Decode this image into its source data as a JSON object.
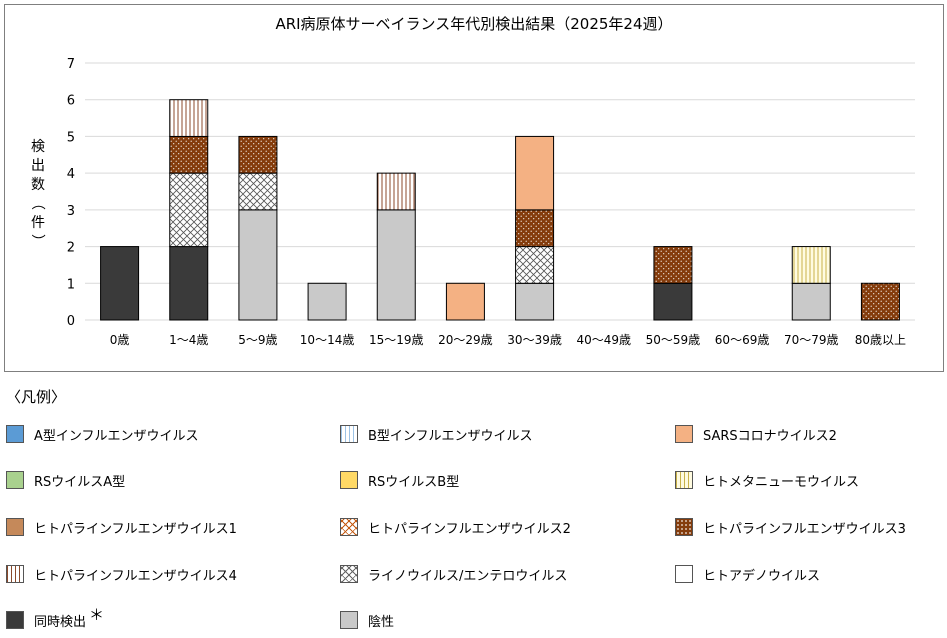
{
  "chart_data": {
    "type": "bar",
    "stacked": true,
    "title": "ARI病原体サーベイランス年代別検出結果（2025年24週）",
    "ylabel_chars": [
      "検",
      "出",
      "数",
      "（",
      "件",
      "）"
    ],
    "ylim": [
      0,
      7
    ],
    "yticks": [
      0,
      1,
      2,
      3,
      4,
      5,
      6,
      7
    ],
    "grid": true,
    "categories": [
      "0歳",
      "1～4歳",
      "5～9歳",
      "10～14歳",
      "15～19歳",
      "20～29歳",
      "30～39歳",
      "40～49歳",
      "50～59歳",
      "60～69歳",
      "70～79歳",
      "80歳以上"
    ],
    "series": [
      {
        "name": "同時検出",
        "pattern": "solid-dark",
        "values": [
          2,
          2,
          0,
          0,
          0,
          0,
          0,
          0,
          1,
          0,
          0,
          0
        ]
      },
      {
        "name": "陰性",
        "pattern": "solid-gray",
        "values": [
          0,
          0,
          3,
          1,
          3,
          0,
          1,
          0,
          0,
          0,
          1,
          0
        ]
      },
      {
        "name": "ライノウイルス/エンテロウイルス",
        "pattern": "cross-hatch",
        "values": [
          0,
          2,
          1,
          0,
          0,
          0,
          1,
          0,
          0,
          0,
          0,
          0
        ]
      },
      {
        "name": "ヒトパラインフルエンザウイルス3",
        "pattern": "brown-dots",
        "values": [
          0,
          1,
          1,
          0,
          0,
          0,
          1,
          0,
          1,
          0,
          0,
          1
        ]
      },
      {
        "name": "ヒトパラインフルエンザウイルス4",
        "pattern": "vertical-brown",
        "values": [
          0,
          1,
          0,
          0,
          1,
          0,
          0,
          0,
          0,
          0,
          0,
          0
        ]
      },
      {
        "name": "SARSコロナウイルス2",
        "pattern": "solid-salmon",
        "values": [
          0,
          0,
          0,
          0,
          0,
          1,
          2,
          0,
          0,
          0,
          0,
          0
        ]
      },
      {
        "name": "ヒトメタニューモウイルス",
        "pattern": "vertical-yellow",
        "values": [
          0,
          0,
          0,
          0,
          0,
          0,
          0,
          0,
          0,
          0,
          1,
          0
        ]
      }
    ]
  },
  "legend": {
    "heading": "〈凡例〉",
    "note_mark": "＊",
    "items": [
      {
        "label": "A型インフルエンザウイルス",
        "pattern": "solid-blue"
      },
      {
        "label": "B型インフルエンザウイルス",
        "pattern": "vertical-blue"
      },
      {
        "label": "SARSコロナウイルス2",
        "pattern": "solid-salmon"
      },
      {
        "label": "RSウイルスA型",
        "pattern": "solid-green"
      },
      {
        "label": "RSウイルスB型",
        "pattern": "solid-yellow"
      },
      {
        "label": "ヒトメタニューモウイルス",
        "pattern": "vertical-yellow"
      },
      {
        "label": "ヒトパラインフルエンザウイルス1",
        "pattern": "solid-brown"
      },
      {
        "label": "ヒトパラインフルエンザウイルス2",
        "pattern": "checker-orange"
      },
      {
        "label": "ヒトパラインフルエンザウイルス3",
        "pattern": "brown-dots"
      },
      {
        "label": "ヒトパラインフルエンザウイルス4",
        "pattern": "vertical-brown"
      },
      {
        "label": "ライノウイルス/エンテロウイルス",
        "pattern": "cross-hatch"
      },
      {
        "label": "ヒトアデノウイルス",
        "pattern": "solid-white"
      },
      {
        "label": "同時検出",
        "pattern": "solid-dark",
        "has_note": true
      },
      {
        "label": "陰性",
        "pattern": "solid-gray"
      }
    ]
  },
  "colors": {
    "dark": "#3a3a3a",
    "gray": "#c9c9c9",
    "salmon": "#f4b183",
    "brown": "#843c0c",
    "blue": "#5b9bd5",
    "green": "#a9d18e",
    "yellow": "#ffd966",
    "grid": "#d9d9d9"
  }
}
